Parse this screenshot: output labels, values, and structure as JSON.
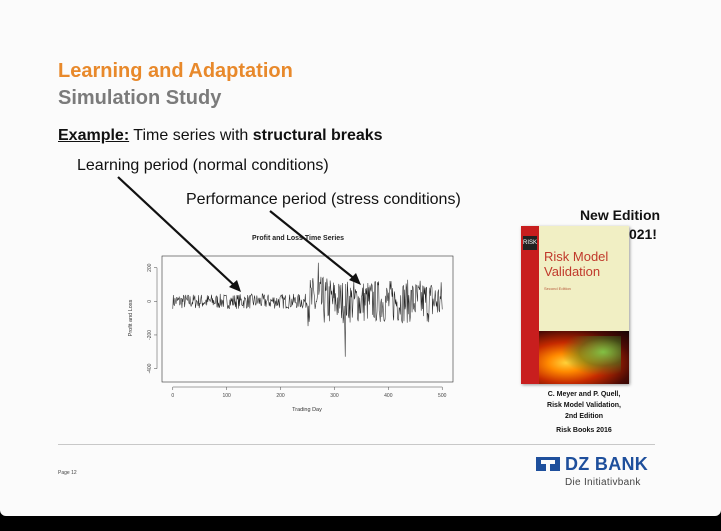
{
  "slide": {
    "title": "Learning and Adaptation",
    "subtitle": "Simulation Study",
    "example_label": "Example:",
    "example_text": " Time series with ",
    "example_bold": "structural breaks",
    "annotation_learning": "Learning period (normal conditions)",
    "annotation_performance": "Performance period (stress conditions)",
    "page_label": "Page 12"
  },
  "promo": {
    "line1": "New Edition",
    "line2": "Early 2021!",
    "book_title_line1": "Risk Model",
    "book_title_line2": "Validation",
    "book_edition": "Second Edition",
    "caption_line1": "C. Meyer and P. Quell,",
    "caption_line2": "Risk Model Validation,",
    "caption_line3": "2nd Edition",
    "caption_publisher": "Risk Books 2016"
  },
  "brand": {
    "name": "DZ BANK",
    "tagline": "Die Initiativbank",
    "color": "#1e4f9c"
  },
  "chart_data": {
    "type": "line",
    "title": "Profit and Loss Time Series",
    "xlabel": "Trading Day",
    "ylabel": "Profit and Loss",
    "xlim": [
      -20,
      520
    ],
    "ylim": [
      -480,
      270
    ],
    "x_ticks": [
      0,
      100,
      200,
      300,
      400,
      500
    ],
    "y_ticks": [
      -400,
      -200,
      0,
      200
    ],
    "series": [
      {
        "name": "Profit and Loss",
        "segments": [
          {
            "from_day": 0,
            "to_day": 250,
            "amplitude": 45,
            "regime": "normal conditions"
          },
          {
            "from_day": 250,
            "to_day": 500,
            "amplitude": 130,
            "regime": "stress conditions"
          }
        ],
        "extremes": [
          {
            "day": 270,
            "value": 230
          },
          {
            "day": 320,
            "value": -330
          }
        ]
      }
    ]
  }
}
